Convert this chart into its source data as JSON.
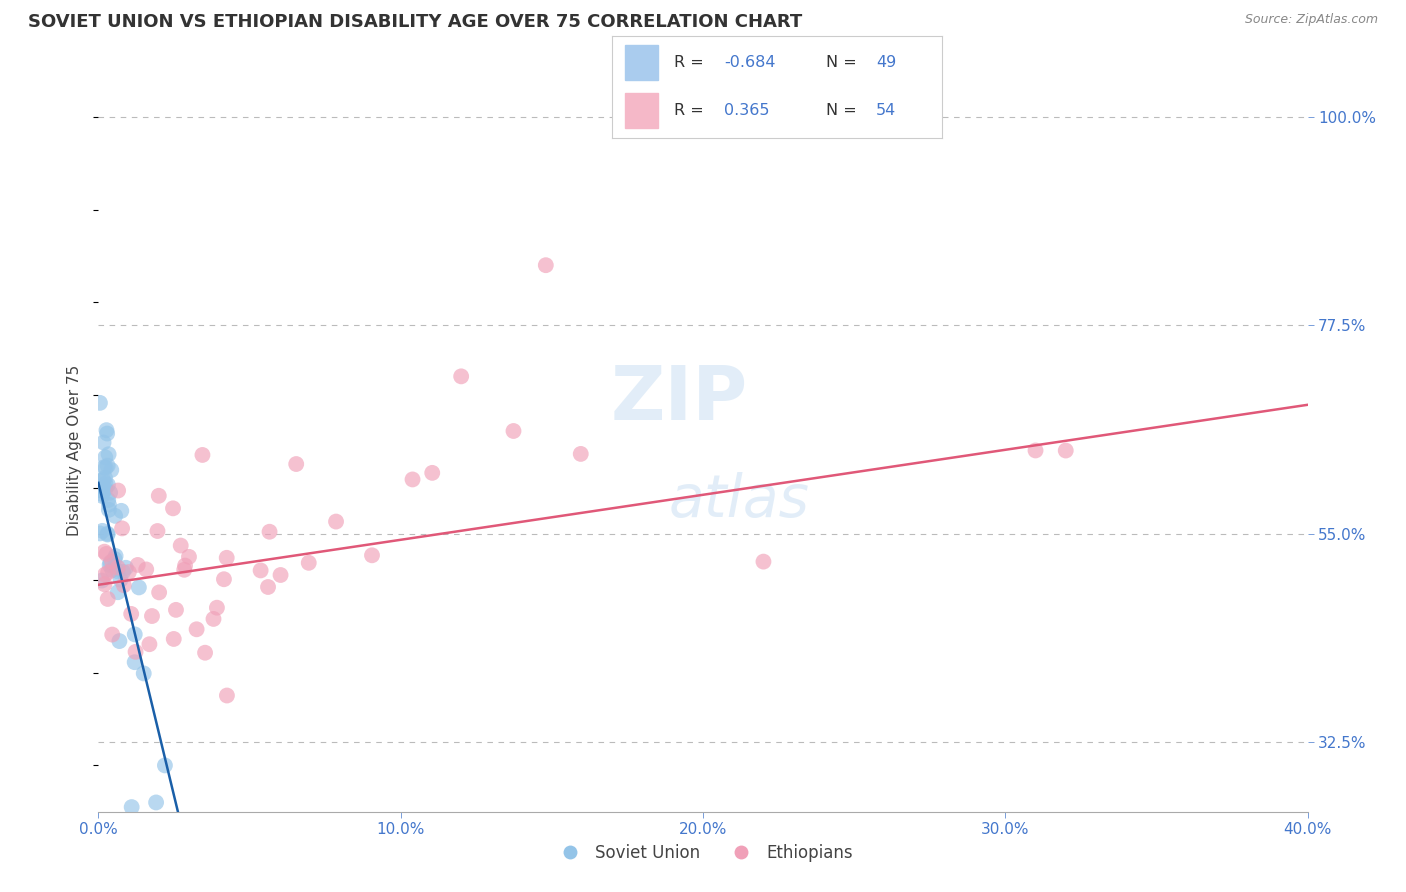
{
  "title": "SOVIET UNION VS ETHIOPIAN DISABILITY AGE OVER 75 CORRELATION CHART",
  "source": "Source: ZipAtlas.com",
  "ylabel": "Disability Age Over 75",
  "x_min": 0.0,
  "x_max": 0.4,
  "y_min": 0.25,
  "y_max": 1.03,
  "x_ticks": [
    0.0,
    0.1,
    0.2,
    0.3,
    0.4
  ],
  "x_tick_labels": [
    "0.0%",
    "10.0%",
    "20.0%",
    "30.0%",
    "40.0%"
  ],
  "y_ticks": [
    0.325,
    0.55,
    0.775,
    1.0
  ],
  "y_tick_labels": [
    "32.5%",
    "55.0%",
    "77.5%",
    "100.0%"
  ],
  "grid_color": "#bbbbbb",
  "background_color": "#ffffff",
  "soviet_color": "#94c4e8",
  "ethiopian_color": "#f0a0b8",
  "soviet_line_color": "#1a5fa8",
  "ethiopian_line_color": "#e05878",
  "soviet_R": -0.684,
  "soviet_N": 49,
  "ethiopian_R": 0.365,
  "ethiopian_N": 54,
  "legend_label_soviet": "Soviet Union",
  "legend_label_ethiopian": "Ethiopians",
  "watermark_line1": "ZIP",
  "watermark_line2": "atlas",
  "tick_color": "#4477cc",
  "title_fontsize": 13,
  "tick_fontsize": 11
}
